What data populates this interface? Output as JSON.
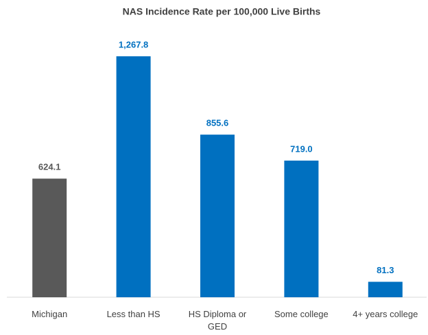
{
  "chart_data": {
    "type": "bar",
    "title": "NAS Incidence Rate per 100,000 Live Births",
    "categories": [
      "Michigan",
      "Less than HS",
      "HS Diploma or GED",
      "Some college",
      "4+ years college"
    ],
    "values": [
      624.1,
      1267.8,
      855.6,
      719.0,
      81.3
    ],
    "value_labels": [
      "624.1",
      "1,267.8",
      "855.6",
      "719.0",
      "81.3"
    ],
    "colors": [
      "#595959",
      "#0070c0",
      "#0070c0",
      "#0070c0",
      "#0070c0"
    ]
  }
}
